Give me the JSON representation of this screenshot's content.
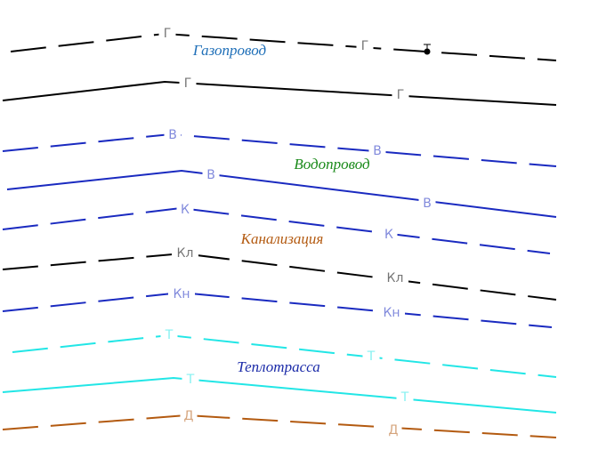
{
  "captions": [
    "Газопровод",
    "Водопровод",
    "Канализация",
    "Теплотрасса"
  ],
  "lines": [
    {
      "marker": "Г"
    },
    {
      "marker": "Г"
    },
    {
      "marker": "В"
    },
    {
      "marker": "В"
    },
    {
      "marker": "К"
    },
    {
      "marker": "Кл"
    },
    {
      "marker": "Кн"
    },
    {
      "marker": "Т"
    },
    {
      "marker": "Т"
    },
    {
      "marker": "Д"
    }
  ]
}
